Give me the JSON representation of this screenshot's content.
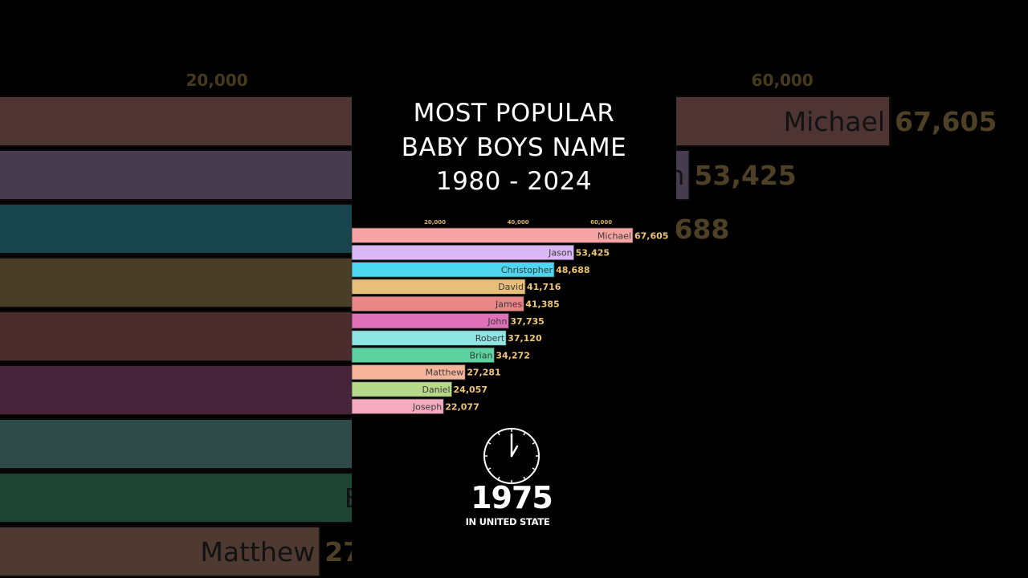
{
  "title": [
    "MOST POPULAR",
    "BABY BOYS NAME",
    "1980 - 2024"
  ],
  "period": {
    "year": "1975",
    "place": "IN UNITED STATE"
  },
  "chart_data": {
    "type": "bar",
    "orientation": "horizontal",
    "categories": [
      "Michael",
      "Jason",
      "Christopher",
      "David",
      "James",
      "John",
      "Robert",
      "Brian",
      "Matthew",
      "Daniel",
      "Joseph"
    ],
    "values": [
      67605,
      53425,
      48688,
      41716,
      41385,
      37735,
      37120,
      34272,
      27281,
      24057,
      22077
    ],
    "value_labels": [
      "67,605",
      "53,425",
      "48,688",
      "41,716",
      "41,385",
      "37,735",
      "37,120",
      "34,272",
      "27,281",
      "24,057",
      "22,077"
    ],
    "colors": [
      "#f5a3a3",
      "#d9b8f5",
      "#4dd6ef",
      "#e6c07a",
      "#e98686",
      "#e070b8",
      "#8fe5e3",
      "#5ad3a0",
      "#f6b49a",
      "#b6d98a",
      "#f5aac0"
    ],
    "axis_ticks": [
      20000,
      40000,
      60000
    ],
    "axis_tick_labels": [
      "20,000",
      "40,000",
      "60,000"
    ],
    "xlim": [
      0,
      67605
    ],
    "label_color": "#f0c673",
    "tick_color": "#d7b45a"
  }
}
